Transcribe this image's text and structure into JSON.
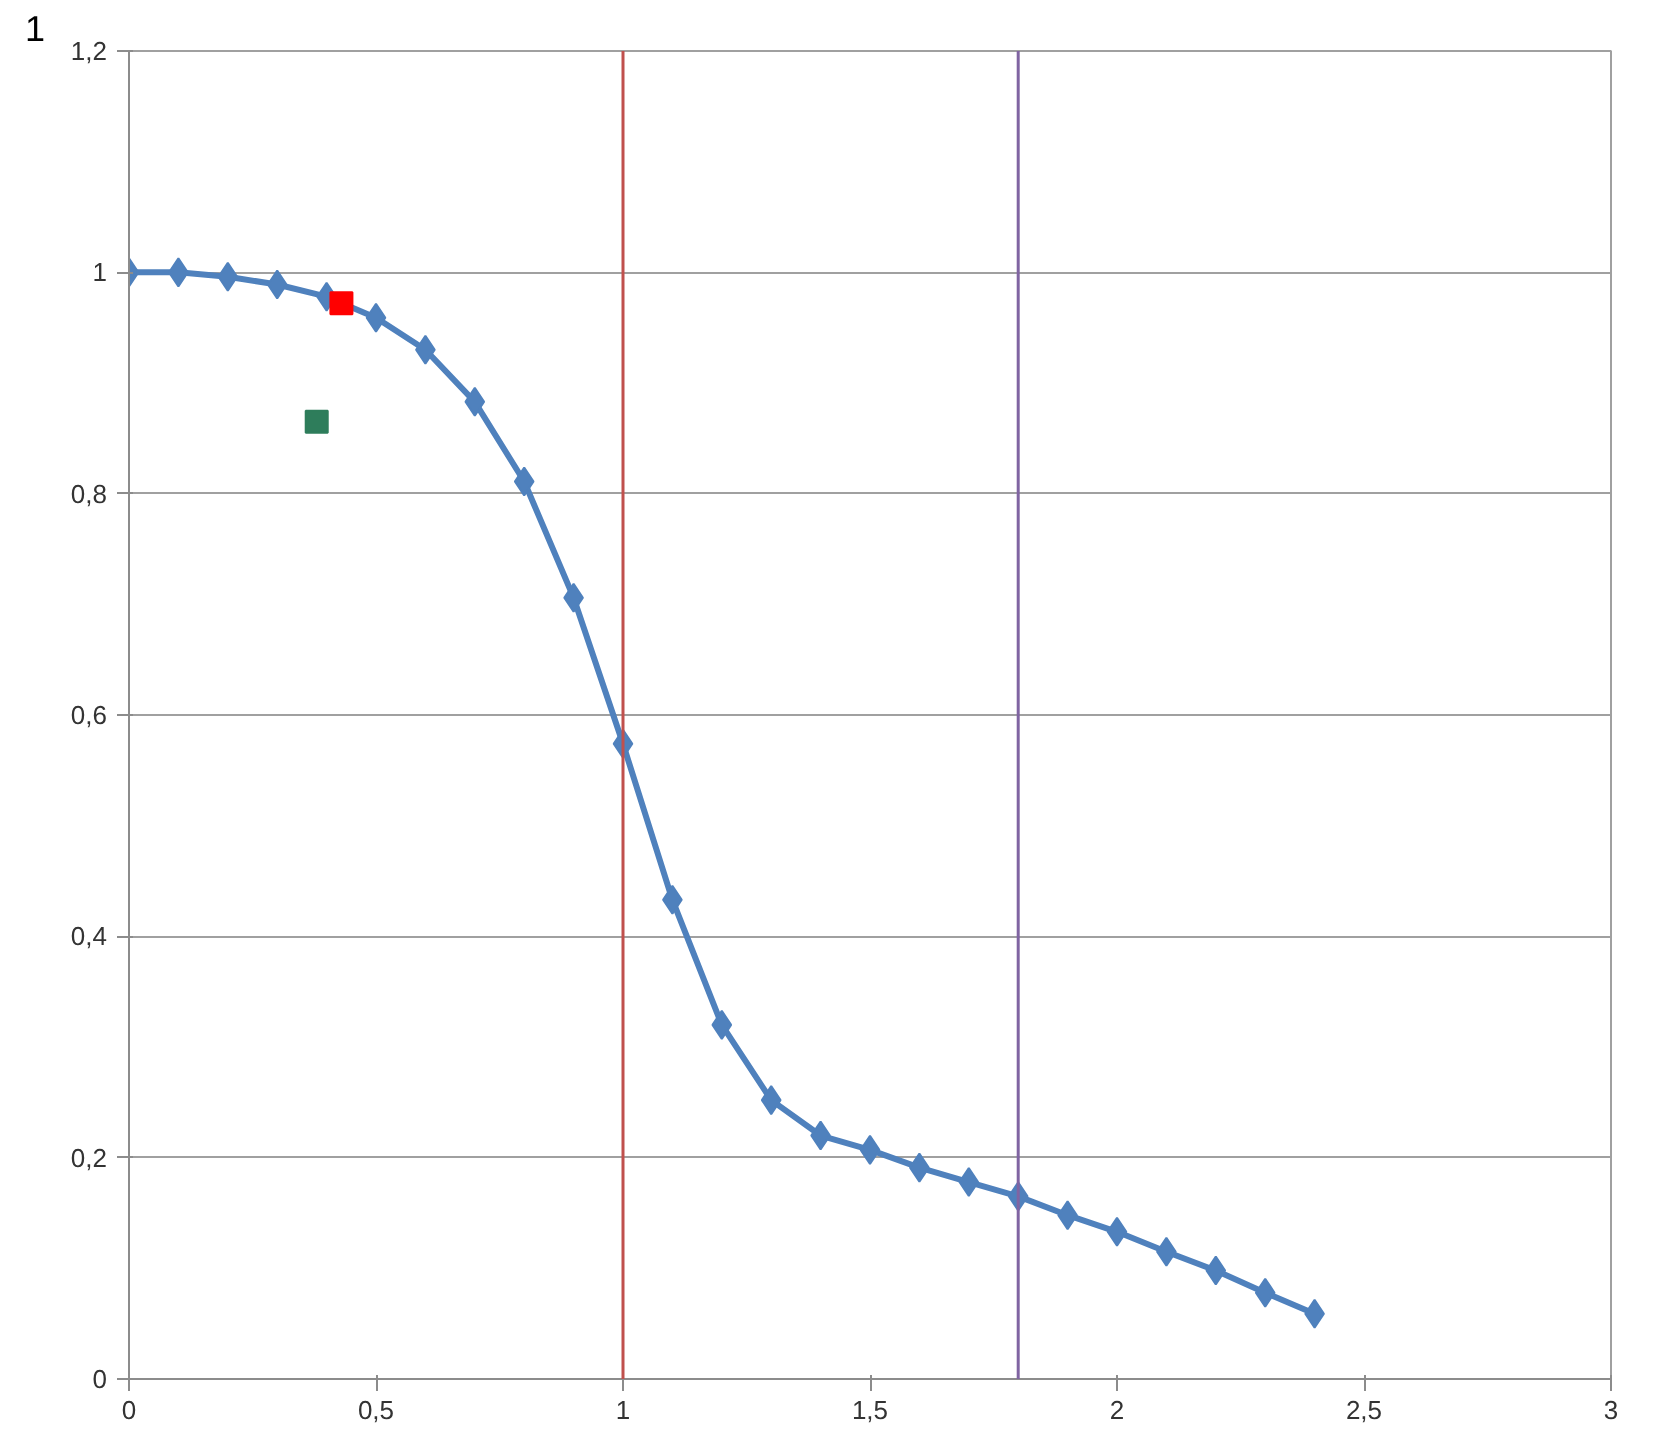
{
  "chart_data": {
    "type": "line",
    "xlim": [
      0,
      3
    ],
    "ylim": [
      0,
      1.2
    ],
    "xticks": [
      0,
      {
        "value": 0.5,
        "label": "0,5"
      },
      1,
      {
        "value": 1.5,
        "label": "1,5"
      },
      2,
      {
        "value": 2.5,
        "label": "2,5"
      },
      3
    ],
    "yticks": [
      0,
      {
        "value": 0.2,
        "label": "0,2"
      },
      {
        "value": 0.4,
        "label": "0,4"
      },
      {
        "value": 0.6,
        "label": "0,6"
      },
      {
        "value": 0.8,
        "label": "0,8"
      },
      1,
      {
        "value": 1.2,
        "label": "1,2"
      }
    ],
    "grid": "y",
    "annotations": [
      "1"
    ],
    "series": [
      {
        "marker": "diamond",
        "color": "#4f81bd",
        "x": [
          0,
          0.1,
          0.2,
          0.3,
          0.4,
          0.5,
          0.6,
          0.7,
          0.8,
          0.9,
          1.0,
          1.1,
          1.2,
          1.3,
          1.4,
          1.5,
          1.6,
          1.7,
          1.8,
          1.9,
          2.0,
          2.1,
          2.2,
          2.3,
          2.4
        ],
        "values": [
          1.0,
          1.0,
          0.996,
          0.989,
          0.978,
          0.959,
          0.93,
          0.883,
          0.811,
          0.706,
          0.574,
          0.433,
          0.32,
          0.252,
          0.22,
          0.207,
          0.191,
          0.178,
          0.165,
          0.148,
          0.133,
          0.115,
          0.098,
          0.078,
          0.059
        ]
      },
      {
        "type": "scatter",
        "marker": "square",
        "color": "#ff0000",
        "x": [
          0.43
        ],
        "values": [
          0.972
        ]
      },
      {
        "type": "scatter",
        "marker": "square",
        "color": "#2e7d5b",
        "x": [
          0.38
        ],
        "values": [
          0.865
        ]
      }
    ],
    "ref_lines": [
      {
        "axis": "x",
        "value": 1,
        "color": "#c0504d"
      },
      {
        "axis": "x",
        "value": 1.8,
        "color": "#8064a2"
      }
    ]
  }
}
